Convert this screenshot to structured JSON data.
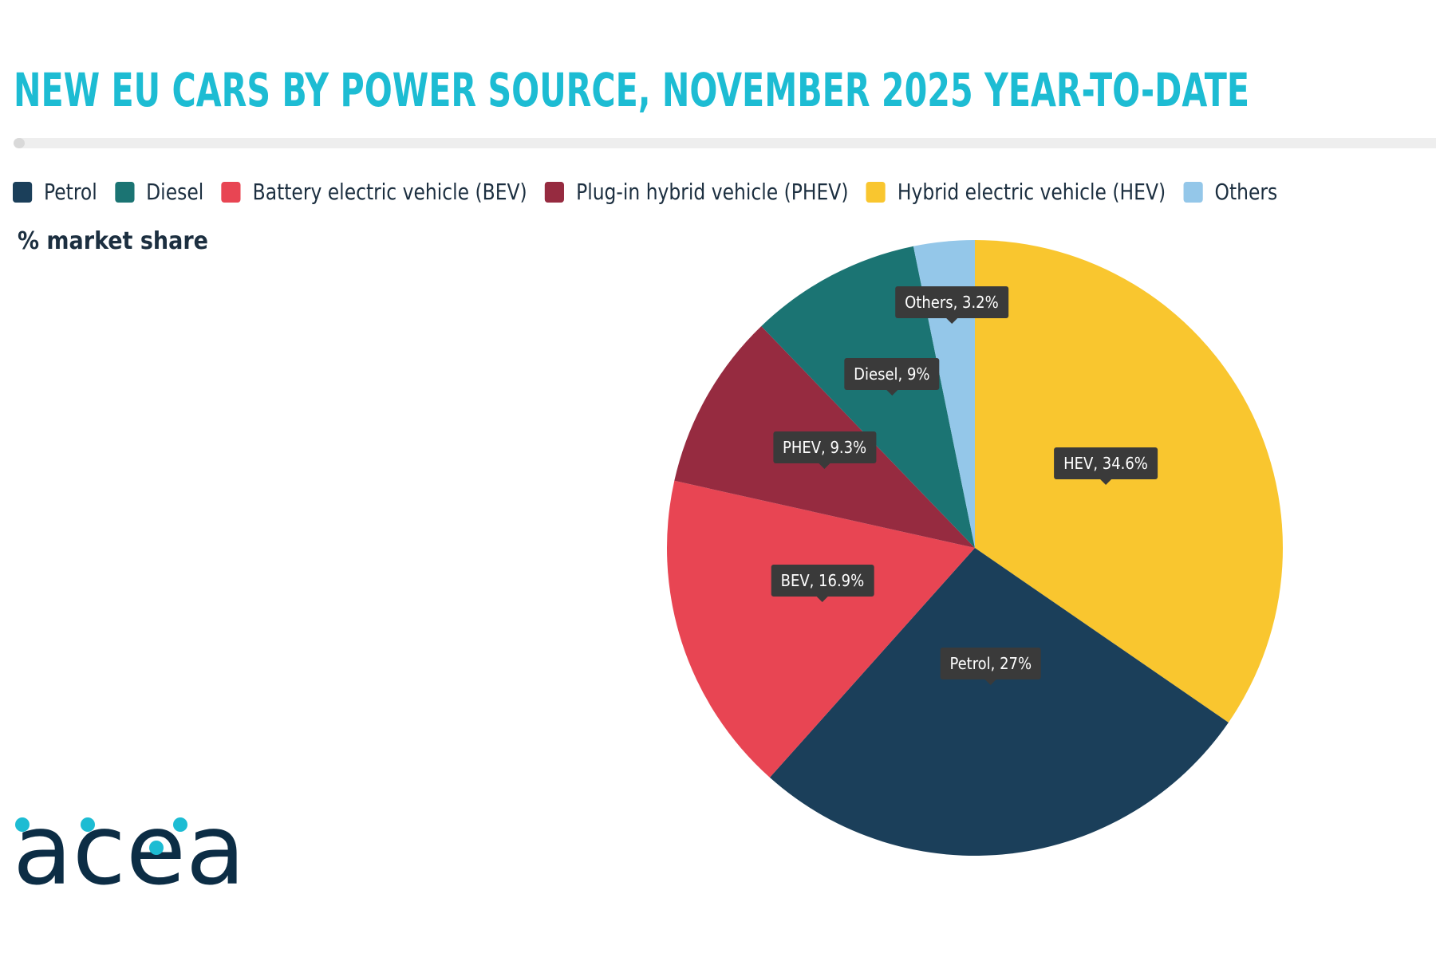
{
  "title": "NEW EU CARS BY POWER SOURCE, NOVEMBER 2025 YEAR-TO-DATE",
  "subtitle": "% market share",
  "logo": {
    "text": "acea",
    "icon": "acea-logo",
    "text_color": "#0c2d45",
    "dot_color": "#1dbcd3"
  },
  "legend": [
    {
      "label": "Petrol",
      "color": "#1b3f5a"
    },
    {
      "label": "Diesel",
      "color": "#1b7473"
    },
    {
      "label": "Battery electric vehicle (BEV)",
      "color": "#e84553"
    },
    {
      "label": "Plug-in hybrid vehicle (PHEV)",
      "color": "#962b40"
    },
    {
      "label": "Hybrid electric vehicle (HEV)",
      "color": "#f9c62f"
    },
    {
      "label": "Others",
      "color": "#94c7e9"
    }
  ],
  "chart_data": {
    "type": "pie",
    "title": "NEW EU CARS BY POWER SOURCE, NOVEMBER 2025 YEAR-TO-DATE",
    "subtitle": "% market share",
    "unit": "%",
    "legend_position": "top",
    "slices": [
      {
        "name": "Hybrid electric vehicle (HEV)",
        "value": 34.6,
        "label": "HEV, 34.6%",
        "color": "#f9c62f"
      },
      {
        "name": "Petrol",
        "value": 27,
        "label": "Petrol, 27%",
        "color": "#1b3f5a"
      },
      {
        "name": "Battery electric vehicle (BEV)",
        "value": 16.9,
        "label": "BEV, 16.9%",
        "color": "#e84553"
      },
      {
        "name": "Plug-in hybrid vehicle (PHEV)",
        "value": 9.3,
        "label": "PHEV, 9.3%",
        "color": "#962b40"
      },
      {
        "name": "Diesel",
        "value": 9,
        "label": "Diesel, 9%",
        "color": "#1b7473"
      },
      {
        "name": "Others",
        "value": 3.2,
        "label": "Others, 3.2%",
        "color": "#94c7e9"
      }
    ]
  }
}
